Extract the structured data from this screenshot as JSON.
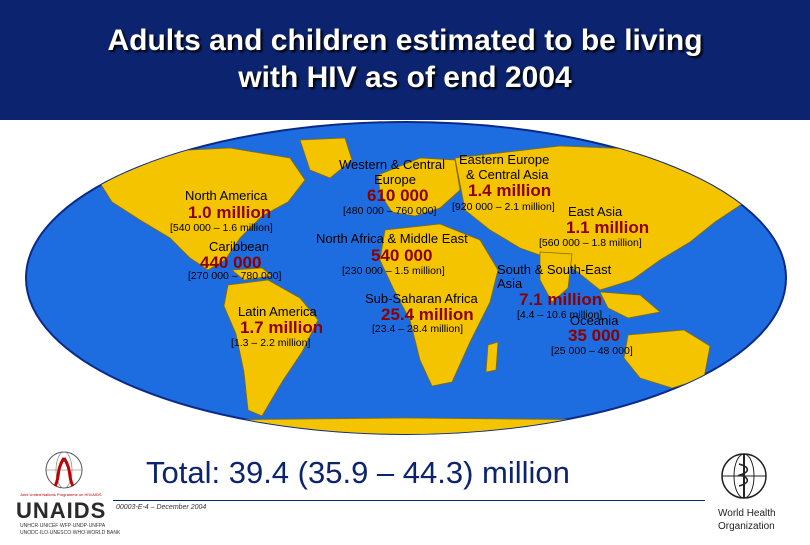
{
  "slide": {
    "title_line1": "Adults and children estimated to be living",
    "title_line2": "with HIV as of end 2004",
    "total": "Total: 39.4 (35.9 – 44.3) million",
    "footer_code": "00003-E-4 – December 2004",
    "colors": {
      "background": "#0c2470",
      "values": "#8b0000",
      "land": "#f5c400",
      "ocean": "#1d6de0"
    }
  },
  "regions": {
    "western_central_europe": {
      "name_line1": "Western & Central",
      "name_line2": "Europe",
      "value": "610 000",
      "range": "[480 000 – 760 000]"
    },
    "eastern_europe_central_asia": {
      "name_line1": "Eastern Europe",
      "name_line2": "& Central Asia",
      "value": "1.4 million",
      "range": "[920 000 – 2.1 million]"
    },
    "north_america": {
      "name": "North America",
      "value": "1.0 million",
      "range": "[540 000 – 1.6 million]"
    },
    "caribbean": {
      "name": "Caribbean",
      "value": "440 000",
      "range": "[270 000 – 780 000]"
    },
    "east_asia": {
      "name": "East Asia",
      "value": "1.1 million",
      "range": "[560 000 – 1.8 million]"
    },
    "north_africa_middle_east": {
      "name": "North Africa & Middle East",
      "value": "540 000",
      "range": "[230 000 – 1.5 million]"
    },
    "south_southeast_asia": {
      "name_line1": "South & South-East",
      "name_line2": "Asia",
      "value": "7.1 million",
      "range": "[4.4 – 10.6 million]"
    },
    "sub_saharan_africa": {
      "name": "Sub-Saharan Africa",
      "value": "25.4 million",
      "range": "[23.4 – 28.4 million]"
    },
    "latin_america": {
      "name": "Latin America",
      "value": "1.7 million",
      "range": "[1.3 – 2.2 million]"
    },
    "oceania": {
      "name": "Oceania",
      "value": "35 000",
      "range": "[25 000 – 48 000]"
    }
  },
  "logos": {
    "unaids_text": "UNAIDS",
    "unaids_tagline": "Joint United Nations Programme on HIV/AIDS",
    "unaids_cosponsors": "UNHCR·UNICEF·WFP·UNDP·UNFPA",
    "unaids_cosponsors2": "UNODC·ILO·UNESCO·WHO·WORLD BANK",
    "who_line1": "World Health",
    "who_line2": "Organization"
  }
}
